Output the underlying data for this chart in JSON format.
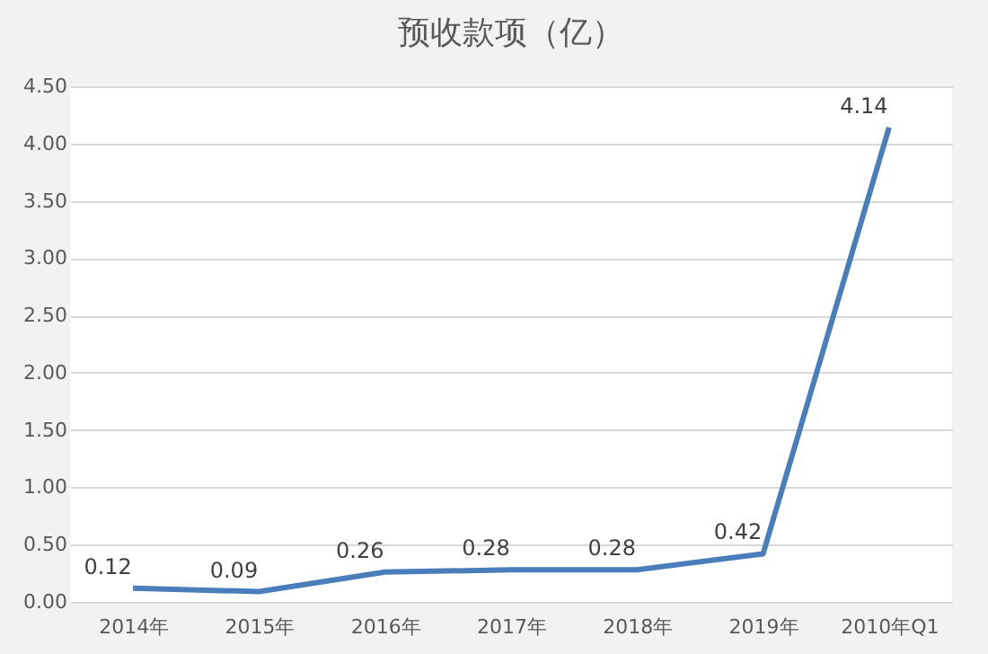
{
  "chart_data": {
    "type": "line",
    "title": "预收款项（亿）",
    "categories": [
      "2014年",
      "2015年",
      "2016年",
      "2017年",
      "2018年",
      "2019年",
      "2010年Q1"
    ],
    "series": [
      {
        "color": "#4a7ebb",
        "values": [
          0.12,
          0.09,
          0.26,
          0.28,
          0.28,
          0.42,
          4.14
        ]
      }
    ],
    "ylim": [
      0,
      4.5
    ],
    "yticks": [
      {
        "value": 0,
        "label": "0.00"
      },
      {
        "value": 0.5,
        "label": "0.50"
      },
      {
        "value": 1,
        "label": "1.00"
      },
      {
        "value": 1.5,
        "label": "1.50"
      },
      {
        "value": 2,
        "label": "2.00"
      },
      {
        "value": 2.5,
        "label": "2.50"
      },
      {
        "value": 3,
        "label": "3.00"
      },
      {
        "value": 3.5,
        "label": "3.50"
      },
      {
        "value": 4,
        "label": "4.00"
      },
      {
        "value": 4.5,
        "label": "4.50"
      }
    ],
    "grid": "y",
    "data_labels": true,
    "marker": "none",
    "line_style": "solid"
  }
}
